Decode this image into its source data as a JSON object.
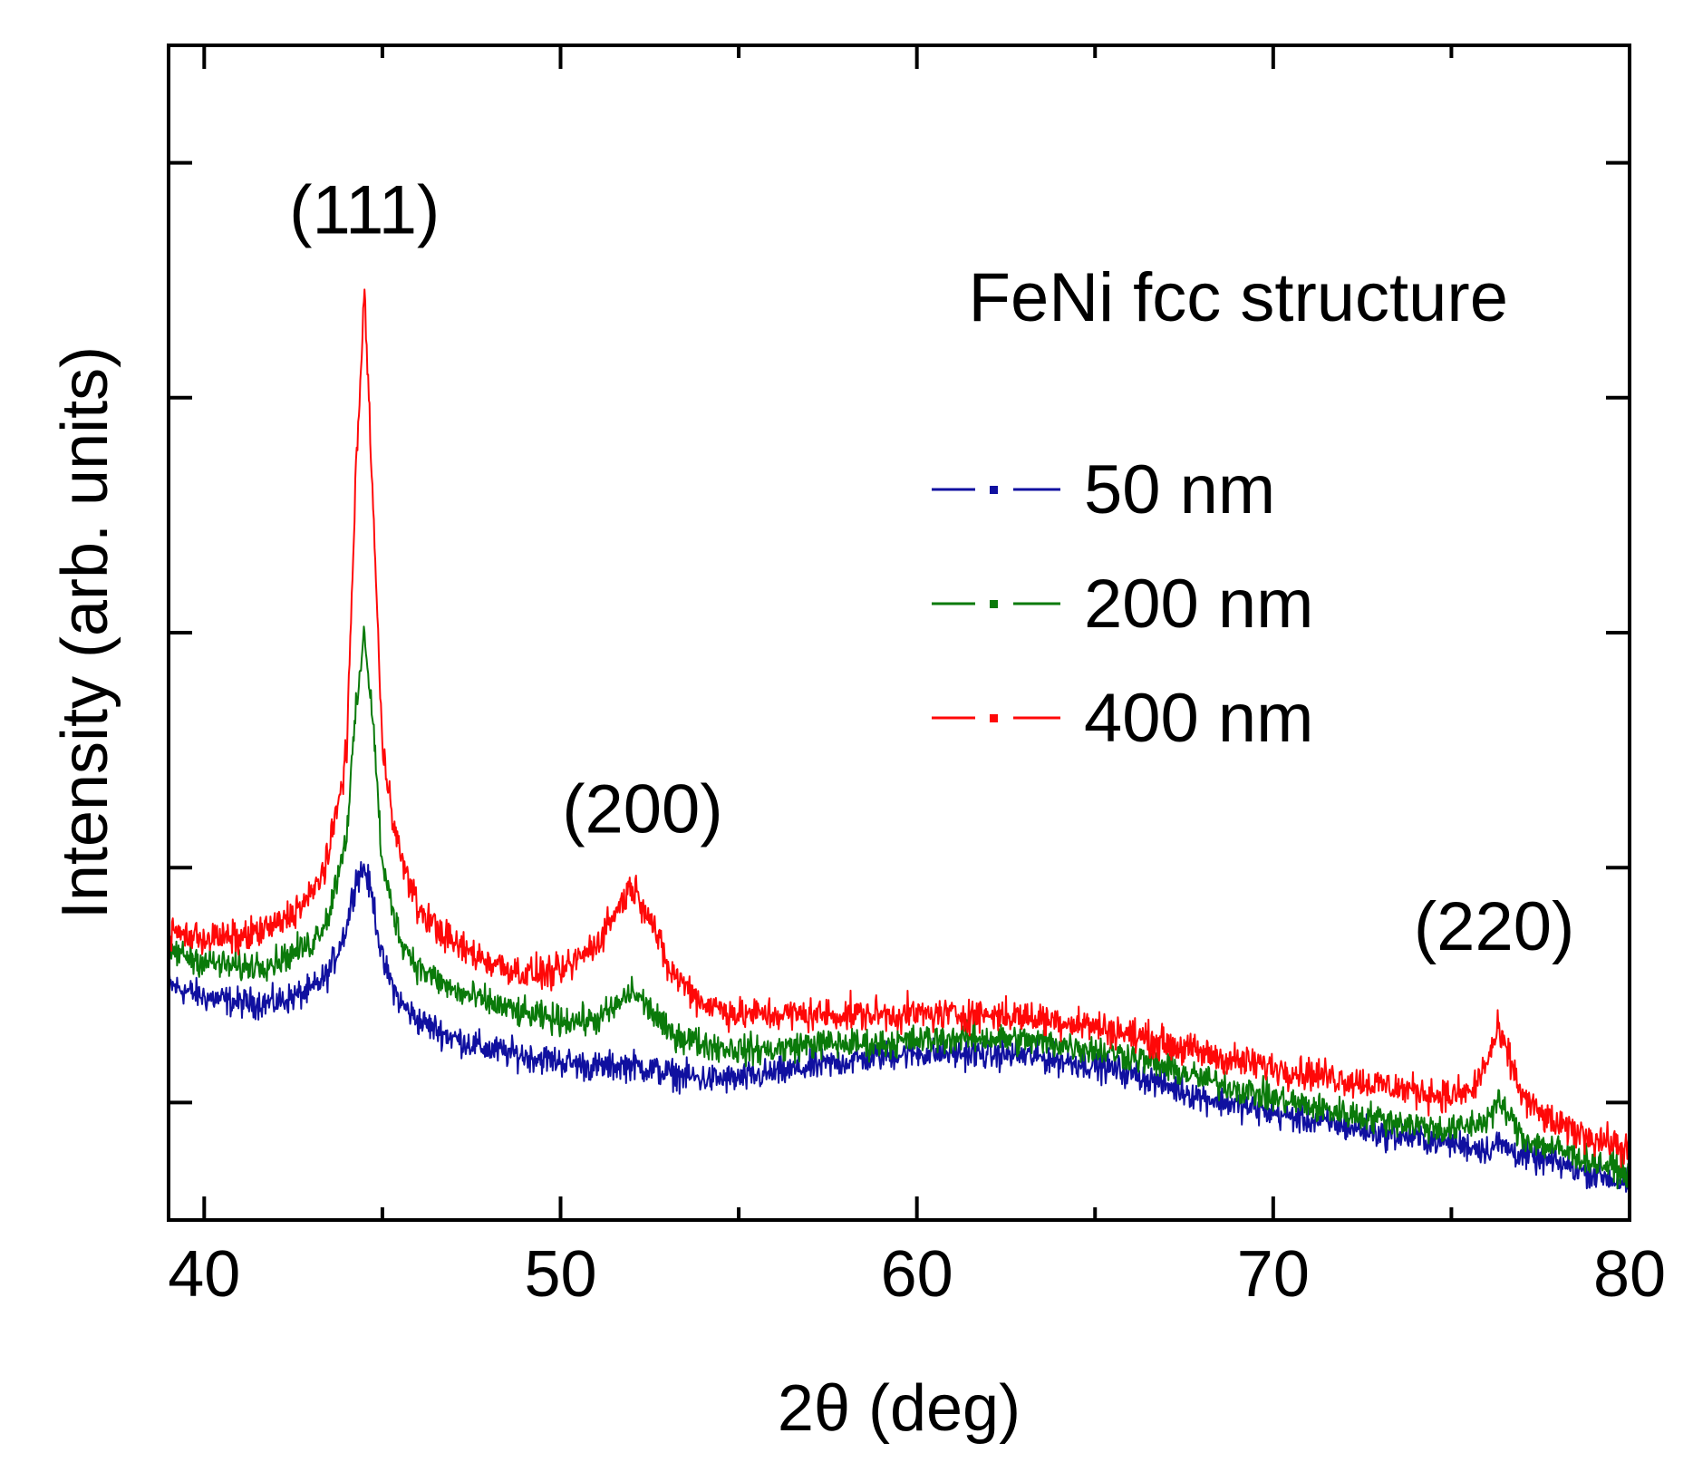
{
  "chart_data": {
    "type": "line",
    "title": "FeNi fcc structure",
    "xlabel": "2θ (deg)",
    "ylabel": "Intensity (arb. units)",
    "xlim": [
      39,
      80
    ],
    "ylim": [
      0,
      100
    ],
    "x_ticks": [
      40,
      50,
      60,
      70,
      80
    ],
    "x_tick_labels": [
      "40",
      "50",
      "60",
      "70",
      "80"
    ],
    "x_minor_ticks": [
      45,
      55,
      65,
      75
    ],
    "y_ticks": [
      10,
      30,
      50,
      70,
      90
    ],
    "y_tick_labels": false,
    "grid": false,
    "legend": {
      "placement": "right",
      "entries": [
        "50 nm",
        "200 nm",
        "400 nm"
      ]
    },
    "annotations": [
      {
        "text": "(111)",
        "x": 44.5,
        "y": 84
      },
      {
        "text": "(200)",
        "x": 52.3,
        "y": 33
      },
      {
        "text": "(220)",
        "x": 76.2,
        "y": 23
      }
    ],
    "series": [
      {
        "name": "50 nm",
        "color": "#1010a0",
        "noise": 0.9,
        "x": [
          39,
          40,
          41,
          42,
          43,
          43.5,
          44,
          44.25,
          44.5,
          44.75,
          45,
          45.5,
          46,
          47,
          48,
          49,
          50,
          51,
          52,
          53,
          54,
          55,
          56,
          57,
          58,
          59,
          60,
          61,
          62,
          63,
          64,
          65,
          66,
          67,
          68,
          69,
          70,
          71,
          72,
          73,
          74,
          75,
          76,
          76.3,
          77,
          78,
          79,
          80
        ],
        "y": [
          20,
          19,
          18.5,
          18.5,
          19.5,
          21,
          25,
          29,
          30,
          27,
          22,
          18.5,
          17,
          15.5,
          14.5,
          14,
          13.5,
          13,
          13.2,
          12.5,
          12,
          12,
          12.5,
          13,
          13.5,
          14,
          14.2,
          14.2,
          14.1,
          14,
          13.6,
          13.2,
          12.5,
          11.5,
          10.5,
          9.8,
          9.1,
          8.5,
          8,
          7.4,
          7,
          6.6,
          6,
          6.5,
          5.5,
          4.8,
          4,
          3
        ]
      },
      {
        "name": "200 nm",
        "color": "#0a7a0a",
        "noise": 0.9,
        "x": [
          39,
          40,
          41,
          42,
          43,
          43.5,
          44,
          44.25,
          44.5,
          44.75,
          45,
          45.5,
          46,
          47,
          48,
          49,
          50,
          51,
          51.5,
          52,
          52.5,
          53,
          54,
          55,
          56,
          57,
          58,
          59,
          60,
          61,
          62,
          63,
          64,
          65,
          66,
          67,
          68,
          69,
          70,
          71,
          72,
          73,
          74,
          75,
          76,
          76.3,
          76.6,
          77,
          78,
          79,
          80
        ],
        "y": [
          23,
          22,
          21.5,
          22,
          23.5,
          26,
          33,
          43,
          50,
          42,
          30,
          24,
          21.5,
          19.5,
          18.5,
          17.5,
          17,
          17,
          18,
          19.5,
          18,
          16,
          15,
          14.5,
          14.5,
          15,
          15,
          15,
          15.3,
          15.5,
          15.5,
          15.3,
          15,
          14.5,
          14,
          13,
          12,
          11.2,
          10.4,
          9.7,
          9.1,
          8.6,
          8.1,
          7.6,
          8.5,
          10,
          9,
          7,
          6,
          5,
          4
        ]
      },
      {
        "name": "400 nm",
        "color": "#ff0808",
        "noise": 1.0,
        "x": [
          39,
          40,
          41,
          42,
          43,
          43.5,
          44,
          44.25,
          44.5,
          44.75,
          45,
          45.5,
          46,
          47,
          48,
          49,
          50,
          51,
          51.5,
          52,
          52.5,
          53,
          54,
          55,
          56,
          57,
          58,
          59,
          60,
          61,
          62,
          63,
          64,
          65,
          66,
          67,
          68,
          69,
          70,
          71,
          72,
          73,
          74,
          75,
          75.6,
          76,
          76.3,
          76.6,
          77,
          77.5,
          78,
          79,
          80
        ],
        "y": [
          24.5,
          24,
          24,
          25,
          27.5,
          31,
          40,
          63,
          79,
          60,
          40,
          31,
          26.5,
          23.5,
          22,
          21,
          21,
          23.5,
          26,
          28.5,
          26,
          21.5,
          18.5,
          17.5,
          17.5,
          17.5,
          17.5,
          17.5,
          17.5,
          17.5,
          17.5,
          17.3,
          17,
          16.5,
          15.8,
          15,
          14.2,
          13.5,
          13,
          12.5,
          12,
          11.5,
          11,
          10.5,
          11,
          13.5,
          16,
          14,
          10.5,
          9,
          8,
          7,
          6
        ]
      }
    ]
  }
}
